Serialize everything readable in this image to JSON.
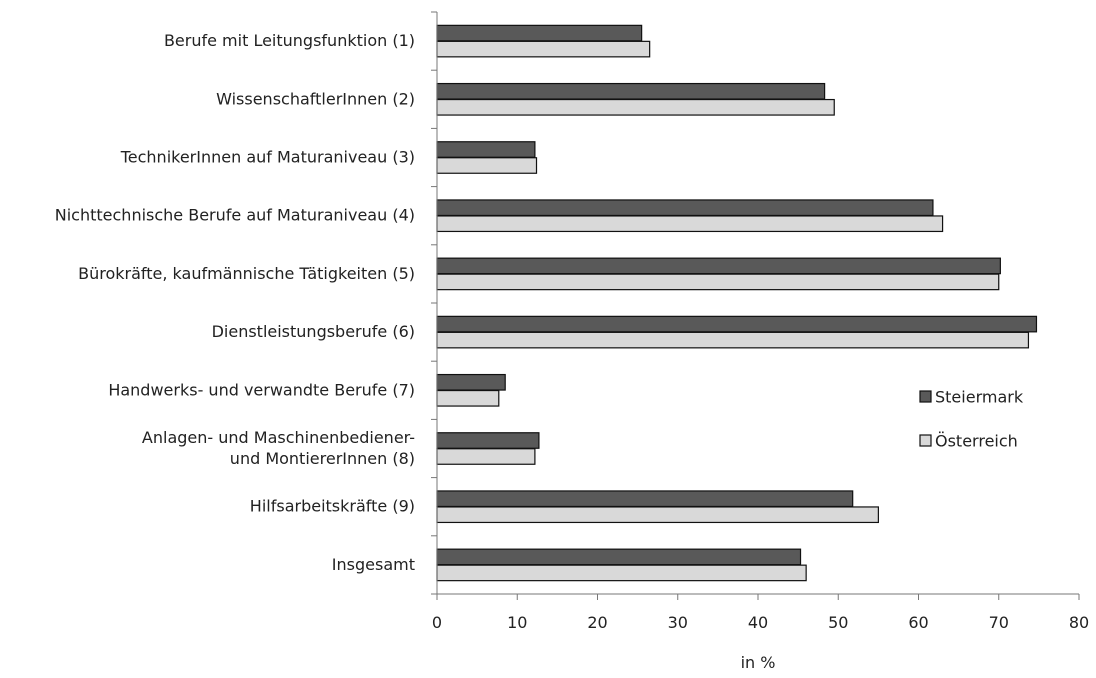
{
  "chart_data": {
    "type": "bar",
    "orientation": "horizontal",
    "categories": [
      [
        "Berufe mit Leitungsfunktion (1)"
      ],
      [
        "WissenschaftlerInnen (2)"
      ],
      [
        "TechnikerInnen auf Maturaniveau (3)"
      ],
      [
        "Nichttechnische Berufe auf Maturaniveau (4)"
      ],
      [
        "Bürokräfte, kaufmännische Tätigkeiten (5)"
      ],
      [
        "Dienstleistungsberufe (6)"
      ],
      [
        "Handwerks- und verwandte Berufe (7)"
      ],
      [
        "Anlagen- und Maschinenbediener-",
        "und MontiererInnen (8)"
      ],
      [
        "Hilfsarbeitskräfte (9)"
      ],
      [
        "Insgesamt"
      ]
    ],
    "series": [
      {
        "name": "Steiermark",
        "color": "#595959",
        "values": [
          25.5,
          48.3,
          12.2,
          61.8,
          70.2,
          74.7,
          8.5,
          12.7,
          51.8,
          45.3
        ]
      },
      {
        "name": "Österreich",
        "color": "#d9d9d9",
        "values": [
          26.5,
          49.5,
          12.4,
          63.0,
          70.0,
          73.7,
          7.7,
          12.2,
          55.0,
          46.0
        ]
      }
    ],
    "xlabel": "in %",
    "xlim": [
      0,
      80
    ],
    "xticks": [
      0,
      10,
      20,
      30,
      40,
      50,
      60,
      70,
      80
    ],
    "grid": false,
    "legend_position": "right"
  }
}
